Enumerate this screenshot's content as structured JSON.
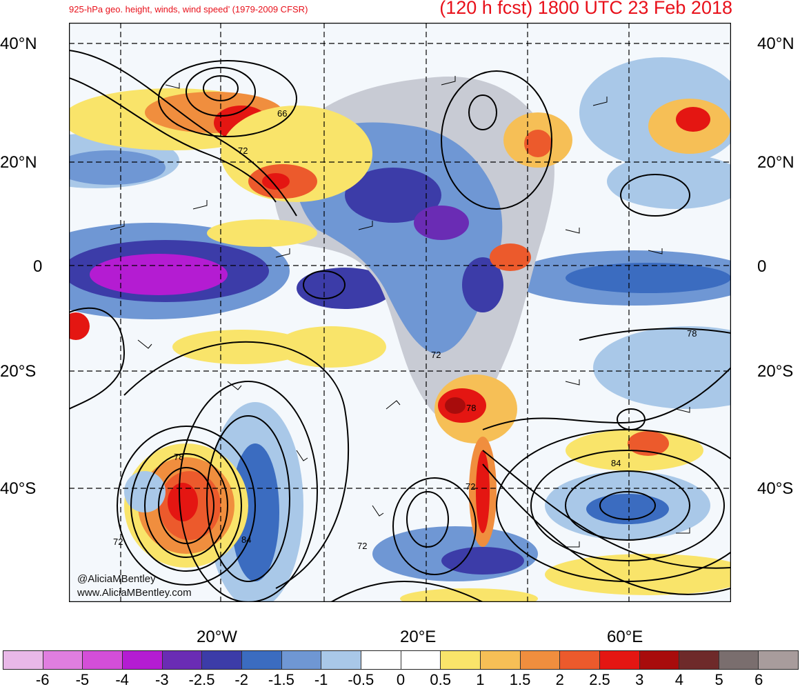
{
  "header": {
    "title_left": "925-hPa geo. height, winds, wind speed’ (1979-2009 CFSR)",
    "title_right": "(120 h fcst) 1800 UTC 23 Feb 2018"
  },
  "axes": {
    "lat_labels": [
      "40°N",
      "20°N",
      "0",
      "20°S",
      "40°S"
    ],
    "lon_labels": [
      "20°W",
      "20°E",
      "60°E"
    ]
  },
  "contour_labels": [
    "66",
    "72",
    "72",
    "78",
    "72",
    "84",
    "72",
    "72",
    "78",
    "78",
    "84"
  ],
  "credits": {
    "twitter": "@AliciaMBentley",
    "website": "www.AliciaMBentley.com"
  },
  "colorbar": {
    "labels": [
      "-6",
      "-5",
      "-4",
      "-3",
      "-2.5",
      "-2",
      "-1.5",
      "-1",
      "-0.5",
      "0",
      "0.5",
      "1",
      "1.5",
      "2",
      "2.5",
      "3",
      "4",
      "5",
      "6"
    ],
    "colors": [
      "#e9b8e8",
      "#e07ee0",
      "#d44ed8",
      "#b41cd2",
      "#6a2cb4",
      "#3c3ca8",
      "#3b6cc0",
      "#6f97d4",
      "#a9c8e8",
      "#ffffff",
      "#ffffff",
      "#f9e46a",
      "#f6bf56",
      "#f08e3e",
      "#ec5a2c",
      "#e41612",
      "#a80c0c",
      "#6e2a2a",
      "#7a6e6e",
      "#a89c9c"
    ]
  }
}
